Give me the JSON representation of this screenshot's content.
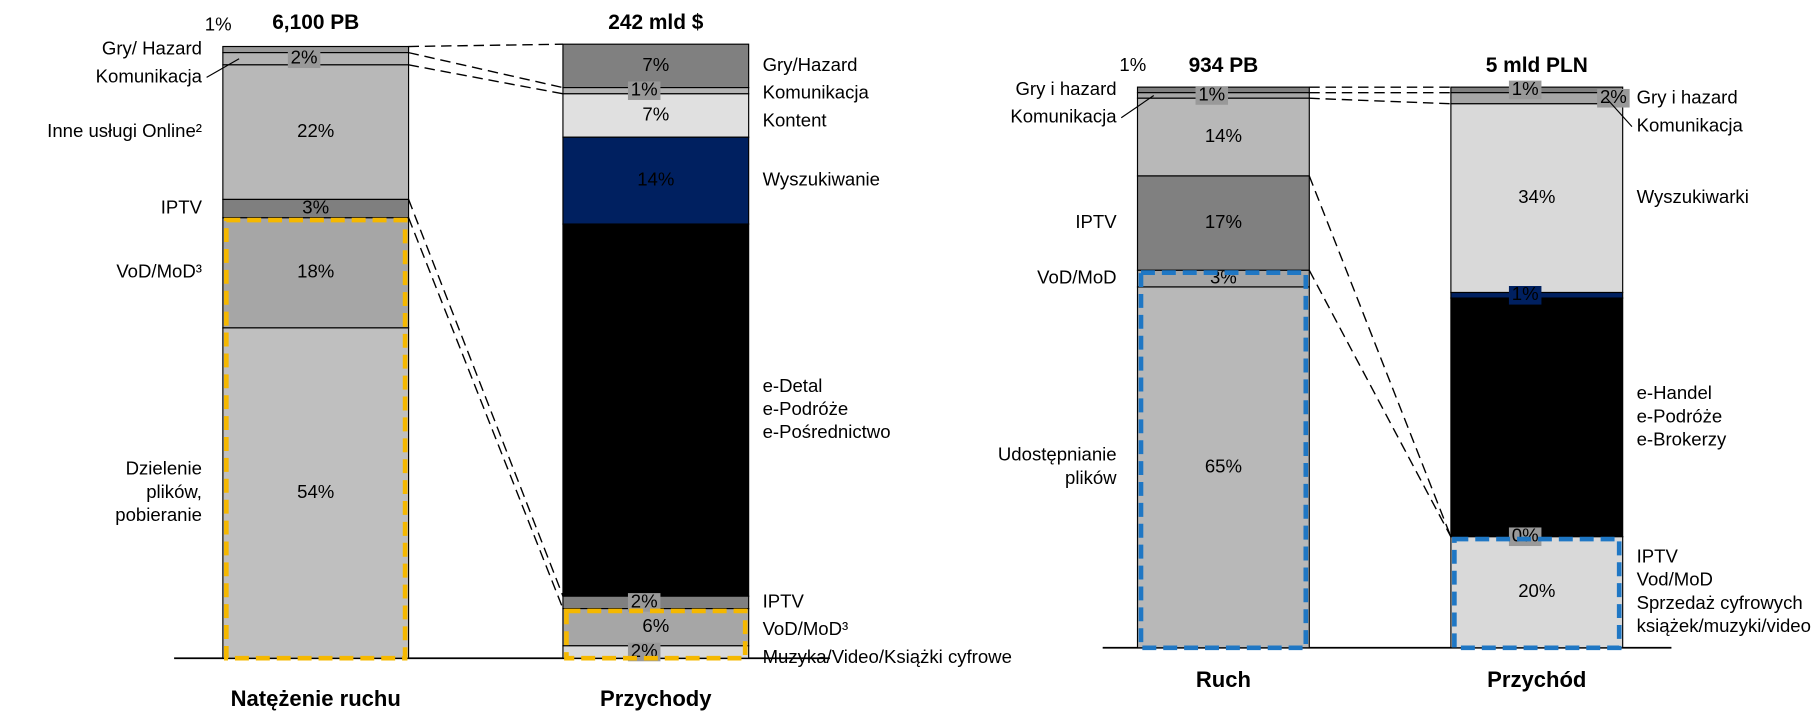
{
  "chart_data": [
    {
      "type": "stacked_column_pair",
      "highlight_color": "#f5b800",
      "columns": [
        {
          "name": "Natężenie ruchu",
          "total": "6,100 PB",
          "labels": [
            "Gry/ Hazard",
            "Komunikacja",
            "Inne usługi Online²",
            "IPTV",
            "VoD/MoD³",
            [
              "Dzielenie",
              "plików,",
              "pobieranie"
            ]
          ],
          "values": [
            1,
            2,
            22,
            3,
            18,
            54
          ],
          "value_labels": [
            "1%",
            "2%",
            "22%",
            "3%",
            "18%",
            "54%"
          ],
          "colors": [
            "#999999",
            "#b3b3b3",
            "#b8b8b8",
            "#7f7f7f",
            "#a6a6a6",
            "#bfbfbf"
          ],
          "highlighted": [
            false,
            false,
            false,
            false,
            true,
            true
          ]
        },
        {
          "name": "Przychody",
          "total": "242 mld $",
          "labels": [
            "Gry/Hazard",
            "Komunikacja",
            "Kontent",
            "Wyszukiwanie",
            [
              "e-Detal",
              "e-Podróże",
              "e-Pośrednictwo"
            ],
            "IPTV",
            "VoD/MoD³",
            "Muzyka/Video/Książki cyfrowe"
          ],
          "values": [
            7,
            1,
            7,
            14,
            60,
            2,
            6,
            2
          ],
          "value_labels": [
            "7%",
            "1%",
            "7%",
            "14%",
            "60%",
            "2%",
            "6%",
            "2%"
          ],
          "colors": [
            "#808080",
            "#b3b3b3",
            "#e0e0e0",
            "#002060",
            "#000000",
            "#808080",
            "#a6a6a6",
            "#d9d9d9"
          ],
          "highlighted": [
            false,
            false,
            false,
            false,
            false,
            false,
            true,
            true
          ]
        }
      ]
    },
    {
      "type": "stacked_column_pair",
      "highlight_color": "#1f77c4",
      "columns": [
        {
          "name": "Ruch",
          "total": "934 PB",
          "labels": [
            "Gry i hazard",
            "Komunikacja",
            null,
            "IPTV",
            "VoD/MoD",
            [
              "Udostępnianie",
              "plików"
            ]
          ],
          "values": [
            1,
            1,
            14,
            17,
            3,
            65
          ],
          "value_labels": [
            "1%",
            "1%",
            "14%",
            "17%",
            "3%",
            "65%"
          ],
          "colors": [
            "#808080",
            "#a6a6a6",
            "#b8b8b8",
            "#808080",
            "#a6a6a6",
            "#b8b8b8"
          ],
          "highlighted": [
            false,
            false,
            false,
            false,
            true,
            true
          ]
        },
        {
          "name": "Przychód",
          "total": "5 mld PLN",
          "labels": [
            "Gry i hazard",
            "Komunikacja",
            "Wyszukiwarki",
            null,
            [
              "e-Handel",
              "e-Podróże",
              "e-Brokerzy"
            ],
            null,
            [
              "IPTV",
              "Vod/MoD",
              "Sprzedaż cyfrowych",
              "książek/muzyki/video"
            ]
          ],
          "values": [
            1,
            2,
            34,
            1,
            43,
            0,
            20
          ],
          "value_labels": [
            "1%",
            "2%",
            "34%",
            "1%",
            "43%",
            "0%",
            "20%"
          ],
          "colors": [
            "#808080",
            "#a6a6a6",
            "#d9d9d9",
            "#002060",
            "#000000",
            "#808080",
            "#d9d9d9"
          ],
          "highlighted": [
            false,
            false,
            false,
            false,
            false,
            false,
            true
          ]
        }
      ]
    }
  ]
}
